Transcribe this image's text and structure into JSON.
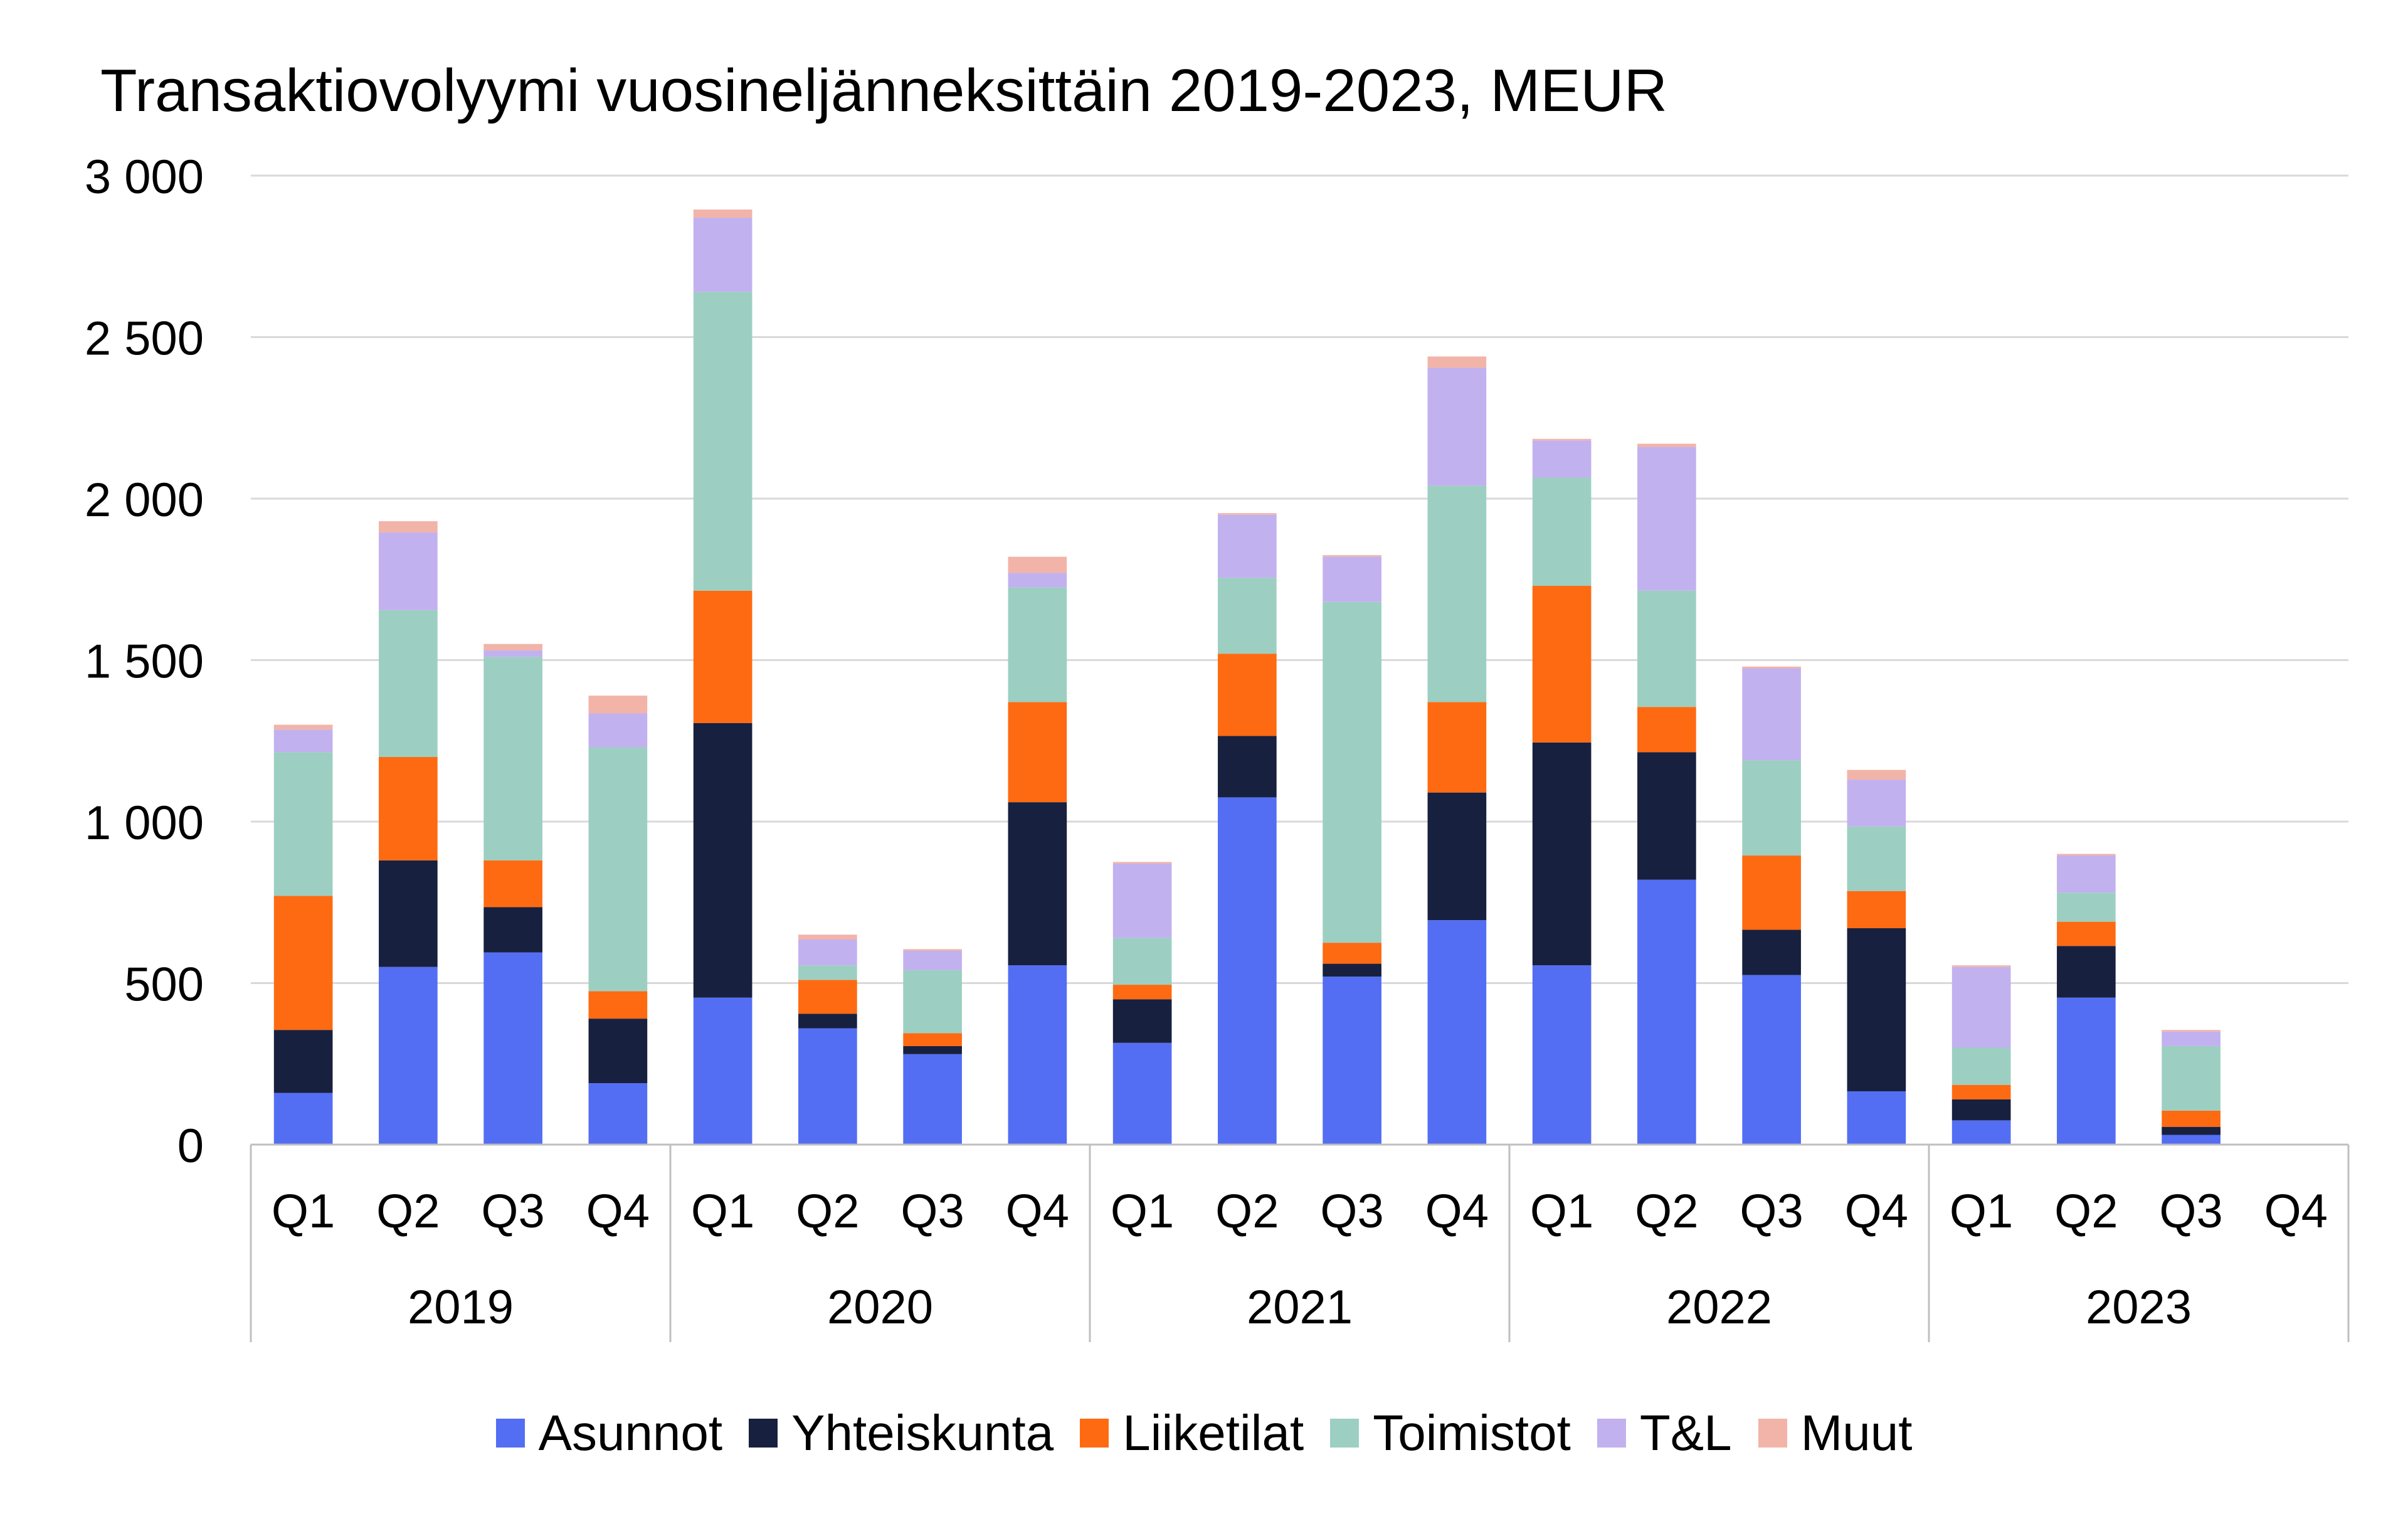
{
  "chart_data": {
    "type": "bar",
    "stacked": true,
    "title": "Transaktiovolyymi vuosineljänneksittäin 2019-2023, MEUR",
    "xlabel": "",
    "ylabel": "",
    "ylim": [
      0,
      3000
    ],
    "yticks": [
      0,
      500,
      1000,
      1500,
      2000,
      2500,
      3000
    ],
    "ytick_labels": [
      "0",
      "500",
      "1 000",
      "1 500",
      "2 000",
      "2 500",
      "3 000"
    ],
    "grid": true,
    "legend_position": "bottom",
    "years": [
      "2019",
      "2020",
      "2021",
      "2022",
      "2023"
    ],
    "categories": [
      "Q1",
      "Q2",
      "Q3",
      "Q4",
      "Q1",
      "Q2",
      "Q3",
      "Q4",
      "Q1",
      "Q2",
      "Q3",
      "Q4",
      "Q1",
      "Q2",
      "Q3",
      "Q4",
      "Q1",
      "Q2",
      "Q3",
      "Q4"
    ],
    "series": [
      {
        "name": "Asunnot",
        "color": "#536ef3",
        "values": [
          160,
          550,
          595,
          190,
          455,
          360,
          280,
          555,
          315,
          1075,
          520,
          695,
          555,
          820,
          525,
          165,
          75,
          455,
          30,
          0
        ]
      },
      {
        "name": "Yhteiskunta",
        "color": "#18203f",
        "values": [
          195,
          330,
          140,
          200,
          850,
          45,
          25,
          505,
          135,
          190,
          40,
          395,
          690,
          395,
          140,
          505,
          65,
          160,
          25,
          0
        ]
      },
      {
        "name": "Liiketilat",
        "color": "#fe6a12",
        "values": [
          415,
          320,
          145,
          85,
          410,
          105,
          40,
          310,
          45,
          255,
          65,
          280,
          485,
          140,
          230,
          115,
          45,
          75,
          50,
          0
        ]
      },
      {
        "name": "Toimistot",
        "color": "#9ccfc2",
        "values": [
          445,
          455,
          630,
          755,
          925,
          45,
          195,
          355,
          145,
          235,
          1055,
          670,
          335,
          360,
          295,
          200,
          115,
          90,
          200,
          0
        ]
      },
      {
        "name": "T&L",
        "color": "#c2b1ef",
        "values": [
          70,
          240,
          20,
          105,
          230,
          80,
          60,
          45,
          230,
          195,
          140,
          365,
          115,
          445,
          285,
          145,
          250,
          115,
          45,
          0
        ]
      },
      {
        "name": "Muut",
        "color": "#f2b4a8",
        "values": [
          15,
          35,
          20,
          55,
          25,
          15,
          5,
          50,
          5,
          5,
          5,
          35,
          5,
          10,
          5,
          30,
          5,
          5,
          5,
          0
        ]
      }
    ]
  }
}
